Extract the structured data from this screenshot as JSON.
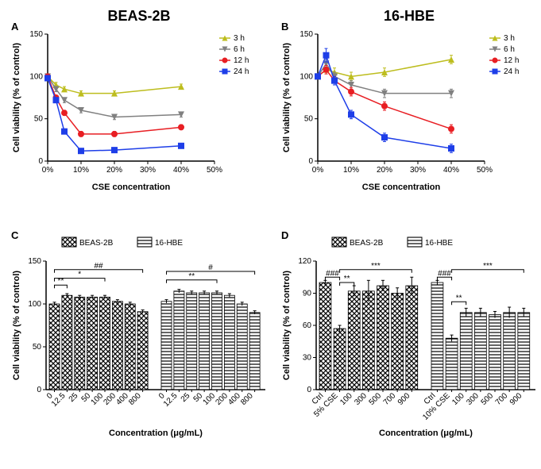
{
  "colors": {
    "yellow": "#bdbd1e",
    "gray": "#808080",
    "red": "#e81e23",
    "blue": "#1e3ee8",
    "black": "#000000",
    "white": "#ffffff",
    "axis": "#000000"
  },
  "panelA": {
    "letter": "A",
    "title": "BEAS-2B",
    "type": "line",
    "xlabel": "CSE concentration",
    "ylabel": "Cell viability (% of control)",
    "xlim": [
      0,
      50
    ],
    "ylim": [
      0,
      150
    ],
    "xticks": [
      {
        "v": 0,
        "l": "0%"
      },
      {
        "v": 10,
        "l": "10%"
      },
      {
        "v": 20,
        "l": "20%"
      },
      {
        "v": 30,
        "l": "30%"
      },
      {
        "v": 40,
        "l": "40%"
      },
      {
        "v": 50,
        "l": "50%"
      }
    ],
    "yticks": [
      0,
      50,
      100,
      150
    ],
    "legend": [
      {
        "name": "3 h",
        "color": "#bdbd1e",
        "marker": "triangle-up"
      },
      {
        "name": "6 h",
        "color": "#808080",
        "marker": "triangle-down"
      },
      {
        "name": "12 h",
        "color": "#e81e23",
        "marker": "circle"
      },
      {
        "name": "24 h",
        "color": "#1e3ee8",
        "marker": "square"
      }
    ],
    "series": {
      "3h": {
        "x": [
          0,
          2.5,
          5,
          10,
          20,
          40
        ],
        "y": [
          100,
          90,
          85,
          80,
          80,
          88
        ],
        "err": [
          0,
          3,
          3,
          3,
          3,
          3
        ],
        "color": "#bdbd1e",
        "marker": "triangle-up"
      },
      "6h": {
        "x": [
          0,
          2.5,
          5,
          10,
          20,
          40
        ],
        "y": [
          100,
          85,
          72,
          60,
          52,
          55
        ],
        "err": [
          0,
          3,
          3,
          3,
          3,
          3
        ],
        "color": "#808080",
        "marker": "triangle-down"
      },
      "12h": {
        "x": [
          0,
          2.5,
          5,
          10,
          20,
          40
        ],
        "y": [
          100,
          75,
          57,
          32,
          32,
          40
        ],
        "err": [
          0,
          3,
          3,
          3,
          3,
          3
        ],
        "color": "#e81e23",
        "marker": "circle"
      },
      "24h": {
        "x": [
          0,
          2.5,
          5,
          10,
          20,
          40
        ],
        "y": [
          98,
          72,
          35,
          12,
          13,
          18
        ],
        "err": [
          0,
          3,
          3,
          3,
          3,
          3
        ],
        "color": "#1e3ee8",
        "marker": "square"
      }
    }
  },
  "panelB": {
    "letter": "B",
    "title": "16-HBE",
    "type": "line",
    "xlabel": "CSE concentration",
    "ylabel": "Cell viability (% of control)",
    "xlim": [
      0,
      50
    ],
    "ylim": [
      0,
      150
    ],
    "xticks": [
      {
        "v": 0,
        "l": "0%"
      },
      {
        "v": 10,
        "l": "10%"
      },
      {
        "v": 20,
        "l": "20%"
      },
      {
        "v": 30,
        "l": "30%"
      },
      {
        "v": 40,
        "l": "40%"
      },
      {
        "v": 50,
        "l": "50%"
      }
    ],
    "yticks": [
      0,
      50,
      100,
      150
    ],
    "legend": [
      {
        "name": "3 h",
        "color": "#bdbd1e",
        "marker": "triangle-up"
      },
      {
        "name": "6 h",
        "color": "#808080",
        "marker": "triangle-down"
      },
      {
        "name": "12 h",
        "color": "#e81e23",
        "marker": "circle"
      },
      {
        "name": "24 h",
        "color": "#1e3ee8",
        "marker": "square"
      }
    ],
    "series": {
      "3h": {
        "x": [
          0,
          2.5,
          5,
          10,
          20,
          40
        ],
        "y": [
          100,
          108,
          105,
          100,
          105,
          120
        ],
        "err": [
          0,
          5,
          5,
          5,
          5,
          5
        ],
        "color": "#bdbd1e",
        "marker": "triangle-up"
      },
      "6h": {
        "x": [
          0,
          2.5,
          5,
          10,
          20,
          40
        ],
        "y": [
          100,
          115,
          100,
          90,
          80,
          80
        ],
        "err": [
          0,
          5,
          5,
          5,
          5,
          5
        ],
        "color": "#808080",
        "marker": "triangle-down"
      },
      "12h": {
        "x": [
          0,
          2.5,
          5,
          10,
          20,
          40
        ],
        "y": [
          100,
          108,
          95,
          82,
          65,
          38
        ],
        "err": [
          0,
          5,
          5,
          5,
          5,
          5
        ],
        "color": "#e81e23",
        "marker": "circle"
      },
      "24h": {
        "x": [
          0,
          2.5,
          5,
          10,
          20,
          40
        ],
        "y": [
          100,
          125,
          95,
          55,
          28,
          15
        ],
        "err": [
          0,
          8,
          5,
          5,
          5,
          5
        ],
        "color": "#1e3ee8",
        "marker": "square"
      }
    }
  },
  "panelC": {
    "letter": "C",
    "type": "bar",
    "xlabel": "Concentration (μg/mL)",
    "ylabel": "Cell viability (% of control)",
    "ylim": [
      0,
      150
    ],
    "yticks": [
      0,
      50,
      100,
      150
    ],
    "legend": [
      {
        "name": "BEAS-2B",
        "pattern": "crosshatch"
      },
      {
        "name": "16-HBE",
        "pattern": "hstripe"
      }
    ],
    "groups": [
      {
        "pattern": "crosshatch",
        "x": [
          "0",
          "12.5",
          "25",
          "50",
          "100",
          "200",
          "400",
          "800"
        ],
        "y": [
          100,
          110,
          108,
          108,
          108,
          103,
          100,
          91
        ],
        "err": [
          2,
          2,
          2,
          2,
          2,
          2,
          2,
          2
        ],
        "sig": [
          {
            "from": 0,
            "to": 1,
            "label": "**",
            "h": 122
          },
          {
            "from": 0,
            "to": 4,
            "label": "*",
            "h": 130
          },
          {
            "from": 0,
            "to": 7,
            "label": "##",
            "h": 140
          }
        ]
      },
      {
        "pattern": "hstripe",
        "x": [
          "0",
          "12.5",
          "25",
          "50",
          "100",
          "200",
          "400",
          "800"
        ],
        "y": [
          103,
          115,
          113,
          113,
          113,
          110,
          100,
          90
        ],
        "err": [
          2,
          2,
          2,
          2,
          2,
          2,
          2,
          2
        ],
        "sig": [
          {
            "from": 0,
            "to": 4,
            "label": "**",
            "h": 128
          },
          {
            "from": 0,
            "to": 7,
            "label": "#",
            "h": 138
          }
        ]
      }
    ]
  },
  "panelD": {
    "letter": "D",
    "type": "bar",
    "xlabel": "Concentration (μg/mL)",
    "ylabel": "Cell viability (% of control)",
    "ylim": [
      0,
      120
    ],
    "yticks": [
      0,
      30,
      60,
      90,
      120
    ],
    "legend": [
      {
        "name": "BEAS-2B",
        "pattern": "crosshatch"
      },
      {
        "name": "16-HBE",
        "pattern": "hstripe"
      }
    ],
    "groups": [
      {
        "pattern": "crosshatch",
        "x": [
          "Ctrl",
          "5% CSE",
          "100",
          "300",
          "500",
          "700",
          "900"
        ],
        "y": [
          100,
          57,
          92,
          92,
          97,
          90,
          97
        ],
        "err": [
          2,
          3,
          5,
          10,
          5,
          5,
          8
        ],
        "sig": [
          {
            "from": 0,
            "to": 1,
            "label": "###",
            "h": 105
          },
          {
            "from": 1,
            "to": 2,
            "label": "**",
            "h": 100
          },
          {
            "from": 1,
            "to": 6,
            "label": "***",
            "h": 112
          }
        ]
      },
      {
        "pattern": "hstripe",
        "x": [
          "Ctrl",
          "10% CSE",
          "100",
          "300",
          "500",
          "700",
          "900"
        ],
        "y": [
          100,
          48,
          72,
          72,
          70,
          72,
          72
        ],
        "err": [
          2,
          3,
          4,
          4,
          3,
          5,
          4
        ],
        "sig": [
          {
            "from": 0,
            "to": 1,
            "label": "###",
            "h": 105
          },
          {
            "from": 1,
            "to": 2,
            "label": "**",
            "h": 82
          },
          {
            "from": 1,
            "to": 6,
            "label": "***",
            "h": 112
          }
        ]
      }
    ]
  },
  "style": {
    "title_fontsize": 18,
    "label_fontsize": 11,
    "tick_fontsize": 10,
    "line_width": 1.5,
    "marker_size": 4,
    "bar_border": "#000000"
  }
}
